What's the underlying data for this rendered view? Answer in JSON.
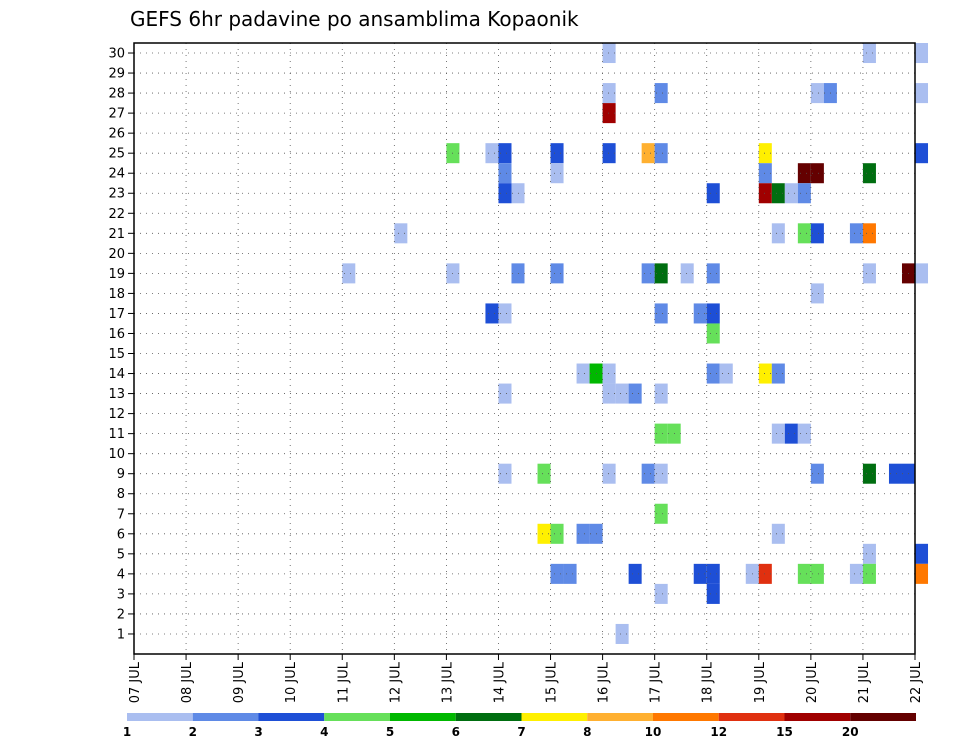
{
  "chart_data": {
    "type": "heatmap",
    "title": "GEFS 6hr padavine po ansamblima Kopaonik",
    "x_tick_labels": [
      "07 JUL",
      "08 JUL",
      "09 JUL",
      "10 JUL",
      "11 JUL",
      "12 JUL",
      "13 JUL",
      "14 JUL",
      "15 JUL",
      "16 JUL",
      "17 JUL",
      "18 JUL",
      "19 JUL",
      "20 JUL",
      "21 JUL",
      "22 JUL"
    ],
    "x_range": [
      "07 JUL",
      "22 JUL"
    ],
    "y_ticks": [
      1,
      2,
      3,
      4,
      5,
      6,
      7,
      8,
      9,
      10,
      11,
      12,
      13,
      14,
      15,
      16,
      17,
      18,
      19,
      20,
      21,
      22,
      23,
      24,
      25,
      26,
      27,
      28,
      29,
      30
    ],
    "y_range": [
      0,
      30
    ],
    "grid": true,
    "legend_position": "bottom",
    "colorbar": {
      "labels": [
        "1",
        "2",
        "3",
        "4",
        "5",
        "6",
        "7",
        "8",
        "10",
        "12",
        "15",
        "20"
      ],
      "colors": [
        "#aabef0",
        "#5f8ae6",
        "#1e4fd6",
        "#66e05a",
        "#00b800",
        "#006e10",
        "#fff000",
        "#ffb030",
        "#ff7800",
        "#e03010",
        "#a00000",
        "#640000"
      ]
    },
    "cells": [
      {
        "t": 9.0,
        "m": 30,
        "v": 1
      },
      {
        "t": 14.0,
        "m": 30,
        "v": 1
      },
      {
        "t": 15.0,
        "m": 30,
        "v": 1
      },
      {
        "t": 9.0,
        "m": 28,
        "v": 1
      },
      {
        "t": 10.0,
        "m": 28,
        "v": 2
      },
      {
        "t": 13.0,
        "m": 28,
        "v": 1
      },
      {
        "t": 13.25,
        "m": 28,
        "v": 2
      },
      {
        "t": 15.0,
        "m": 28,
        "v": 1
      },
      {
        "t": 9.0,
        "m": 27,
        "v": 15
      },
      {
        "t": 6.0,
        "m": 25,
        "v": 4
      },
      {
        "t": 6.75,
        "m": 25,
        "v": 1
      },
      {
        "t": 7.0,
        "m": 25,
        "v": 3
      },
      {
        "t": 8.0,
        "m": 25,
        "v": 3
      },
      {
        "t": 9.0,
        "m": 25,
        "v": 3
      },
      {
        "t": 9.75,
        "m": 25,
        "v": 8
      },
      {
        "t": 10.0,
        "m": 25,
        "v": 2
      },
      {
        "t": 12.0,
        "m": 25,
        "v": 7
      },
      {
        "t": 15.0,
        "m": 25,
        "v": 3
      },
      {
        "t": 7.0,
        "m": 24,
        "v": 2
      },
      {
        "t": 8.0,
        "m": 24,
        "v": 1
      },
      {
        "t": 12.0,
        "m": 24,
        "v": 2
      },
      {
        "t": 12.75,
        "m": 24,
        "v": 20
      },
      {
        "t": 13.0,
        "m": 24,
        "v": 20
      },
      {
        "t": 14.0,
        "m": 24,
        "v": 6
      },
      {
        "t": 7.0,
        "m": 23,
        "v": 3
      },
      {
        "t": 7.25,
        "m": 23,
        "v": 1
      },
      {
        "t": 11.0,
        "m": 23,
        "v": 3
      },
      {
        "t": 12.0,
        "m": 23,
        "v": 15
      },
      {
        "t": 12.25,
        "m": 23,
        "v": 6
      },
      {
        "t": 12.5,
        "m": 23,
        "v": 1
      },
      {
        "t": 12.75,
        "m": 23,
        "v": 2
      },
      {
        "t": 5.0,
        "m": 21,
        "v": 1
      },
      {
        "t": 12.25,
        "m": 21,
        "v": 1
      },
      {
        "t": 12.75,
        "m": 21,
        "v": 4
      },
      {
        "t": 13.0,
        "m": 21,
        "v": 3
      },
      {
        "t": 13.75,
        "m": 21,
        "v": 2
      },
      {
        "t": 14.0,
        "m": 21,
        "v": 10
      },
      {
        "t": 4.0,
        "m": 19,
        "v": 1
      },
      {
        "t": 6.0,
        "m": 19,
        "v": 1
      },
      {
        "t": 7.25,
        "m": 19,
        "v": 2
      },
      {
        "t": 8.0,
        "m": 19,
        "v": 2
      },
      {
        "t": 9.75,
        "m": 19,
        "v": 2
      },
      {
        "t": 10.0,
        "m": 19,
        "v": 6
      },
      {
        "t": 10.5,
        "m": 19,
        "v": 1
      },
      {
        "t": 11.0,
        "m": 19,
        "v": 2
      },
      {
        "t": 14.0,
        "m": 19,
        "v": 1
      },
      {
        "t": 14.75,
        "m": 19,
        "v": 20
      },
      {
        "t": 15.0,
        "m": 19,
        "v": 1
      },
      {
        "t": 13.0,
        "m": 18,
        "v": 1
      },
      {
        "t": 6.75,
        "m": 17,
        "v": 3
      },
      {
        "t": 7.0,
        "m": 17,
        "v": 1
      },
      {
        "t": 10.0,
        "m": 17,
        "v": 2
      },
      {
        "t": 10.75,
        "m": 17,
        "v": 2
      },
      {
        "t": 11.0,
        "m": 17,
        "v": 3
      },
      {
        "t": 11.0,
        "m": 16,
        "v": 4
      },
      {
        "t": 8.5,
        "m": 14,
        "v": 1
      },
      {
        "t": 8.75,
        "m": 14,
        "v": 5
      },
      {
        "t": 9.0,
        "m": 14,
        "v": 1
      },
      {
        "t": 11.0,
        "m": 14,
        "v": 2
      },
      {
        "t": 11.25,
        "m": 14,
        "v": 1
      },
      {
        "t": 12.0,
        "m": 14,
        "v": 7
      },
      {
        "t": 12.25,
        "m": 14,
        "v": 2
      },
      {
        "t": 7.0,
        "m": 13,
        "v": 1
      },
      {
        "t": 9.0,
        "m": 13,
        "v": 1
      },
      {
        "t": 9.25,
        "m": 13,
        "v": 1
      },
      {
        "t": 9.5,
        "m": 13,
        "v": 2
      },
      {
        "t": 10.0,
        "m": 13,
        "v": 1
      },
      {
        "t": 10.0,
        "m": 11,
        "v": 4
      },
      {
        "t": 10.25,
        "m": 11,
        "v": 4
      },
      {
        "t": 12.25,
        "m": 11,
        "v": 1
      },
      {
        "t": 12.5,
        "m": 11,
        "v": 3
      },
      {
        "t": 12.75,
        "m": 11,
        "v": 1
      },
      {
        "t": 7.0,
        "m": 9,
        "v": 1
      },
      {
        "t": 7.75,
        "m": 9,
        "v": 4
      },
      {
        "t": 9.0,
        "m": 9,
        "v": 1
      },
      {
        "t": 9.75,
        "m": 9,
        "v": 2
      },
      {
        "t": 10.0,
        "m": 9,
        "v": 1
      },
      {
        "t": 13.0,
        "m": 9,
        "v": 2
      },
      {
        "t": 14.0,
        "m": 9,
        "v": 6
      },
      {
        "t": 14.5,
        "m": 9,
        "v": 3
      },
      {
        "t": 14.75,
        "m": 9,
        "v": 3
      },
      {
        "t": 10.0,
        "m": 7,
        "v": 4
      },
      {
        "t": 7.75,
        "m": 6,
        "v": 7
      },
      {
        "t": 8.0,
        "m": 6,
        "v": 4
      },
      {
        "t": 8.5,
        "m": 6,
        "v": 2
      },
      {
        "t": 8.75,
        "m": 6,
        "v": 2
      },
      {
        "t": 12.25,
        "m": 6,
        "v": 1
      },
      {
        "t": 14.0,
        "m": 5,
        "v": 1
      },
      {
        "t": 15.0,
        "m": 5,
        "v": 3
      },
      {
        "t": 8.0,
        "m": 4,
        "v": 2
      },
      {
        "t": 8.25,
        "m": 4,
        "v": 2
      },
      {
        "t": 9.5,
        "m": 4,
        "v": 3
      },
      {
        "t": 10.75,
        "m": 4,
        "v": 3
      },
      {
        "t": 11.0,
        "m": 4,
        "v": 3
      },
      {
        "t": 11.75,
        "m": 4,
        "v": 1
      },
      {
        "t": 12.0,
        "m": 4,
        "v": 12
      },
      {
        "t": 12.75,
        "m": 4,
        "v": 4
      },
      {
        "t": 13.0,
        "m": 4,
        "v": 4
      },
      {
        "t": 13.75,
        "m": 4,
        "v": 1
      },
      {
        "t": 14.0,
        "m": 4,
        "v": 4
      },
      {
        "t": 15.0,
        "m": 4,
        "v": 10
      },
      {
        "t": 10.0,
        "m": 3,
        "v": 1
      },
      {
        "t": 11.0,
        "m": 3,
        "v": 3
      },
      {
        "t": 9.25,
        "m": 1,
        "v": 1
      }
    ]
  }
}
